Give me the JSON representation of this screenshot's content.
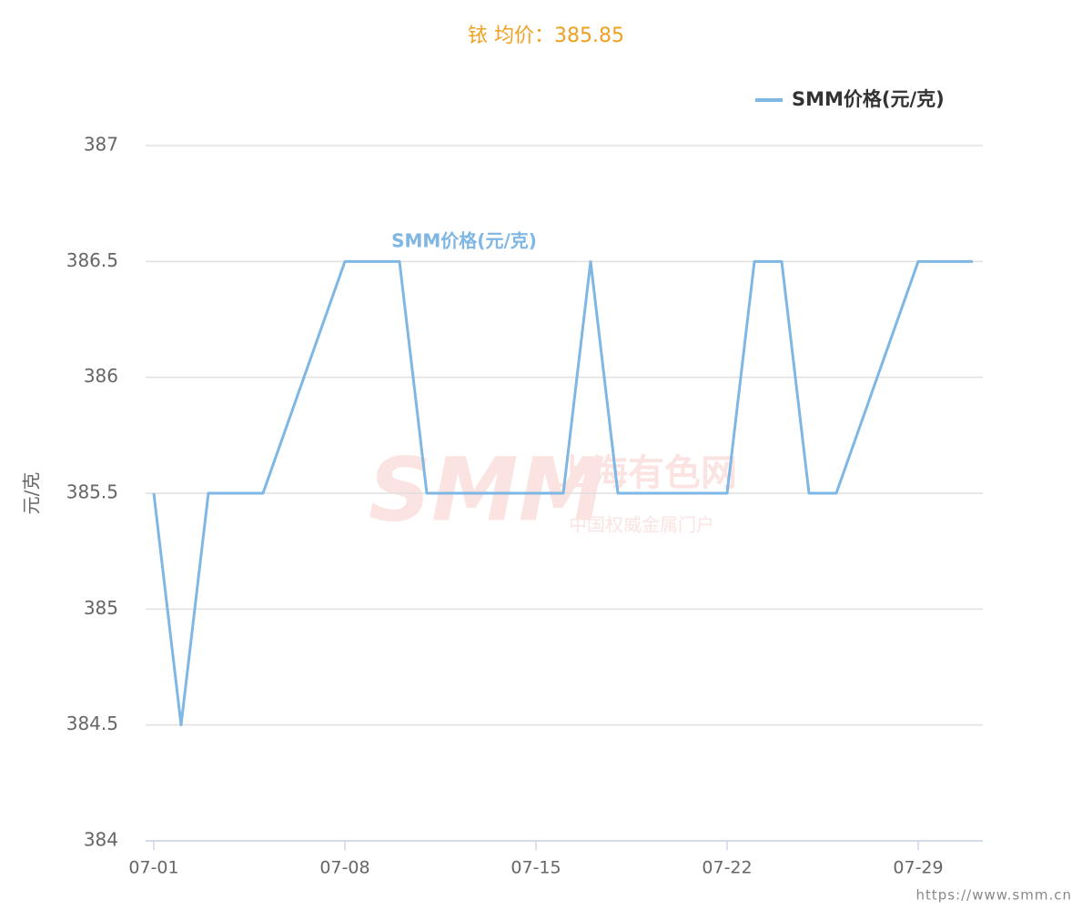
{
  "chart_data": {
    "type": "line",
    "title": "铱 均价：385.85",
    "y_label": "元/克",
    "x": [
      "07-01",
      "07-02",
      "07-03",
      "07-05",
      "07-08",
      "07-10",
      "07-11",
      "07-16",
      "07-17",
      "07-18",
      "07-22",
      "07-23",
      "07-24",
      "07-25",
      "07-26",
      "07-29",
      "07-31"
    ],
    "series": [
      {
        "name": "SMM价格(元/克)",
        "color": "#7eb6e4",
        "values": [
          385.5,
          384.5,
          385.5,
          385.5,
          386.5,
          386.5,
          385.5,
          385.5,
          386.5,
          385.5,
          385.5,
          386.5,
          386.5,
          385.5,
          385.5,
          386.5,
          386.5
        ]
      }
    ],
    "xticks": [
      "07-01",
      "07-08",
      "07-15",
      "07-22",
      "07-29"
    ],
    "ylim": [
      384,
      387
    ],
    "yticks": [
      384,
      384.5,
      385,
      385.5,
      386,
      386.5,
      387
    ],
    "grid": true,
    "legend": "top-right",
    "watermark": {
      "logo": "SMM",
      "name": "上海有色网",
      "slogan": "中国权威金属门户"
    },
    "source": "https://www.smm.cn"
  }
}
